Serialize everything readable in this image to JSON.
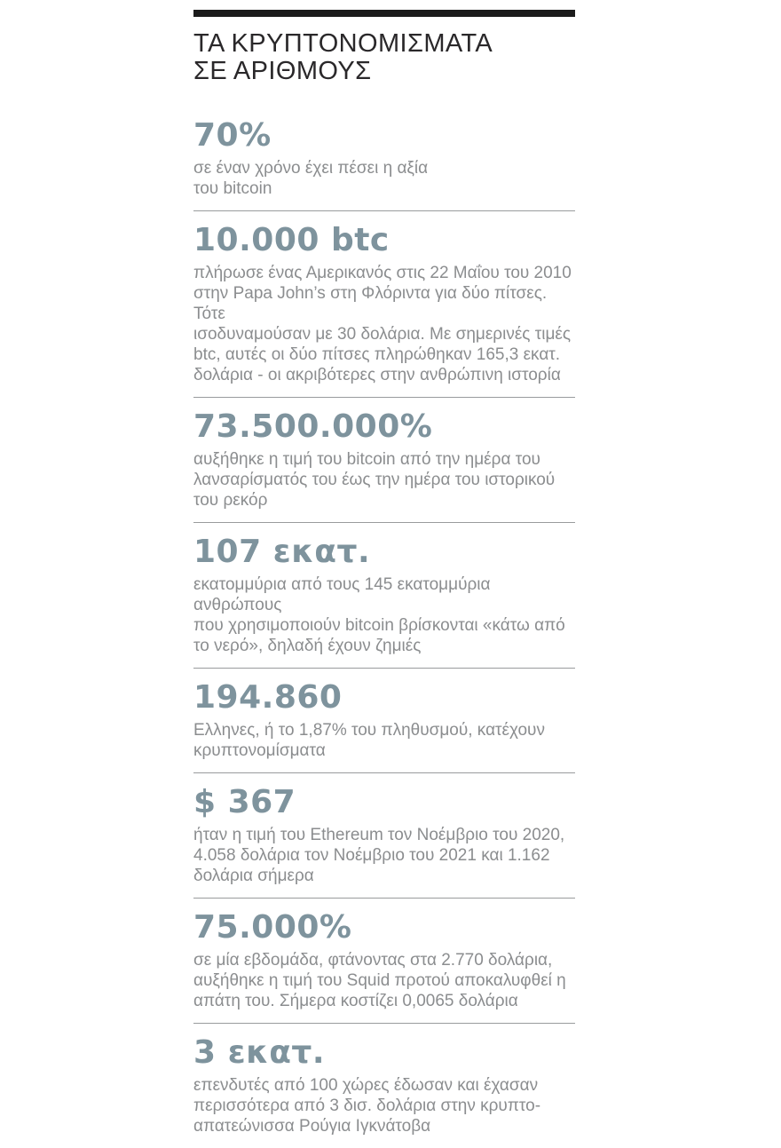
{
  "page": {
    "title": "ΤΑ ΚΡΥΠΤΟΝΟΜΙΣΜΑΤΑ\nΣΕ ΑΡΙΘΜΟΥΣ"
  },
  "colors": {
    "accent_number": "#7e939d",
    "body_text": "#8b8d8f",
    "title_text": "#2a282a",
    "top_bar": "#1b1b1b",
    "divider": "#999b9d"
  },
  "stats": [
    {
      "value": "70%",
      "description": "σε έναν χρόνο έχει πέσει η αξία\nτου bitcoin"
    },
    {
      "value": "10.000 btc",
      "description": "πλήρωσε ένας Αμερικανός στις 22 Μαΐου του 2010\nστην Papa John’s στη Φλόριντα για δύο πίτσες. Τότε\nισοδυναμούσαν με 30 δολάρια. Με σημερινές τιμές\nbtc, αυτές οι δύο πίτσες πληρώθηκαν 165,3 εκατ.\nδολάρια - οι ακριβότερες στην ανθρώπινη ιστορία"
    },
    {
      "value": "73.500.000%",
      "description": "αυξήθηκε η τιμή του bitcoin από την ημέρα του\nλανσαρίσματός του έως την ημέρα του ιστορικού\nτου ρεκόρ"
    },
    {
      "value": "107 εκατ.",
      "description": "εκατομμύρια από τους 145 εκατομμύρια ανθρώπους\nπου χρησιμοποιούν bitcoin βρίσκονται «κάτω από\nτο νερό», δηλαδή έχουν ζημιές"
    },
    {
      "value": "194.860",
      "description": "Ελληνες, ή το 1,87% του πληθυσμού, κατέχουν\nκρυπτονομίσματα"
    },
    {
      "value": "$ 367",
      "description": "ήταν η τιμή του Ethereum τον Νοέμβριο του 2020,\n4.058 δολάρια τον Νοέμβριο του 2021 και 1.162\nδολάρια σήμερα"
    },
    {
      "value": "75.000%",
      "description": "σε μία εβδομάδα, φτάνοντας στα 2.770 δολάρια,\nαυξήθηκε η τιμή του Squid προτού αποκαλυφθεί η\nαπάτη του. Σήμερα κοστίζει 0,0065 δολάρια"
    },
    {
      "value": "3 εκατ.",
      "description": "επενδυτές από 100 χώρες έδωσαν και έχασαν\nπερισσότερα από 3 δισ. δολάρια στην κρυπτο-\nαπατεώνισσα Ρούγια Ιγκνάτοβα"
    }
  ]
}
